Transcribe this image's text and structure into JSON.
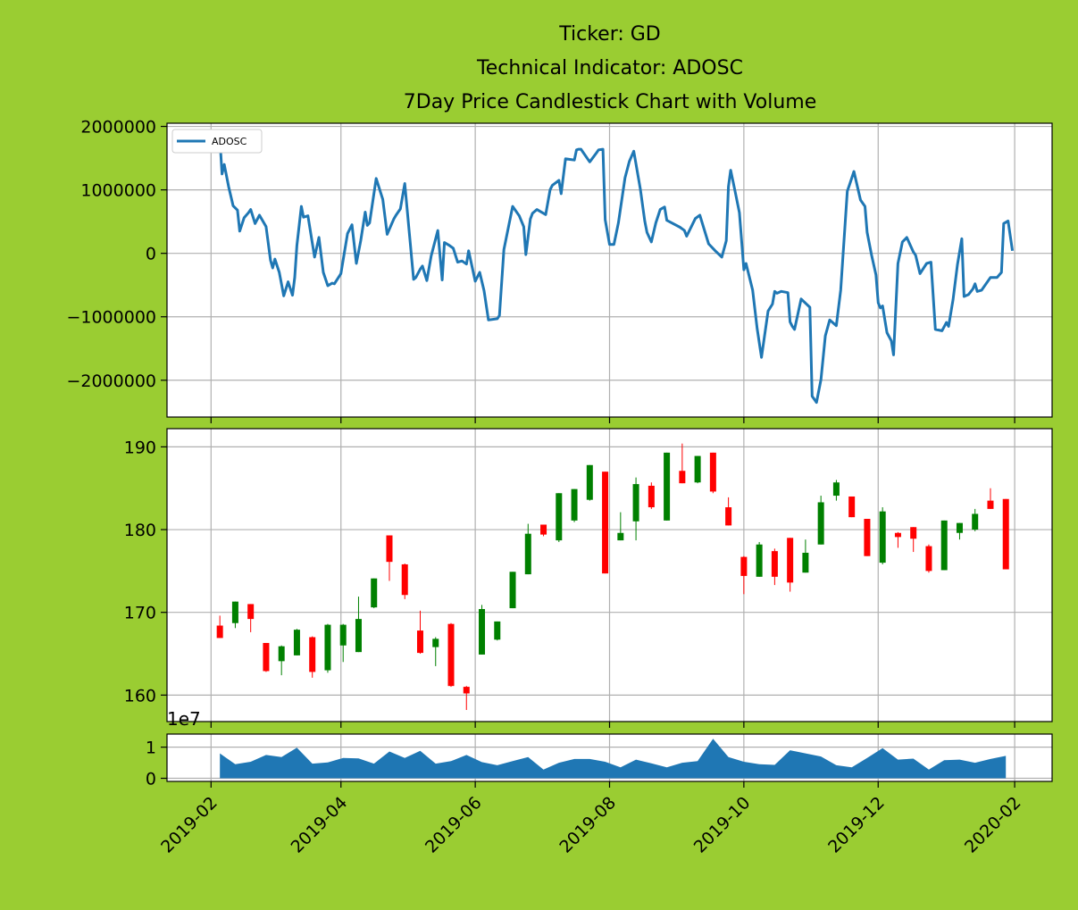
{
  "title_lines": [
    "Ticker: GD",
    "Technical Indicator: ADOSC",
    "7Day Price Candlestick Chart with Volume"
  ],
  "colors": {
    "background": "#9acd32",
    "panel": "#ffffff",
    "line": "#1f77b4",
    "up": "#008000",
    "down": "#ff0000",
    "volume": "#1f77b4",
    "grid": "#b0b0b0"
  },
  "chart_data": [
    {
      "type": "line",
      "panel": "indicator",
      "legend": "ADOSC",
      "legend_position": "upper-left",
      "ylim": [
        -2580000,
        2050000
      ],
      "yticks": [
        2000000,
        1000000,
        0,
        -1000000,
        -2000000
      ],
      "ytick_labels": [
        "2000000",
        "1000000",
        "0",
        "−1000000",
        "−2000000"
      ],
      "grid": true,
      "x_start": "2019-02-01",
      "x_end": "2020-02-01",
      "x": [
        "2019-02-05",
        "2019-02-06",
        "2019-02-07",
        "2019-02-09",
        "2019-02-11",
        "2019-02-13",
        "2019-02-14",
        "2019-02-16",
        "2019-02-18",
        "2019-02-19",
        "2019-02-21",
        "2019-02-23",
        "2019-02-26",
        "2019-02-28",
        "2019-03-01",
        "2019-03-02",
        "2019-03-04",
        "2019-03-06",
        "2019-03-08",
        "2019-03-10",
        "2019-03-11",
        "2019-03-12",
        "2019-03-14",
        "2019-03-15",
        "2019-03-17",
        "2019-03-20",
        "2019-03-22",
        "2019-03-24",
        "2019-03-26",
        "2019-03-28",
        "2019-03-29",
        "2019-04-01",
        "2019-04-04",
        "2019-04-06",
        "2019-04-08",
        "2019-04-10",
        "2019-04-12",
        "2019-04-13",
        "2019-04-14",
        "2019-04-17",
        "2019-04-20",
        "2019-04-22",
        "2019-04-24",
        "2019-04-25",
        "2019-04-26",
        "2019-04-28",
        "2019-04-30",
        "2019-05-04",
        "2019-05-05",
        "2019-05-07",
        "2019-05-08",
        "2019-05-10",
        "2019-05-12",
        "2019-05-15",
        "2019-05-17",
        "2019-05-18",
        "2019-05-20",
        "2019-05-22",
        "2019-05-24",
        "2019-05-26",
        "2019-05-28",
        "2019-05-29",
        "2019-06-01",
        "2019-06-03",
        "2019-06-05",
        "2019-06-07",
        "2019-06-11",
        "2019-06-12",
        "2019-06-14",
        "2019-06-18",
        "2019-06-21",
        "2019-06-23",
        "2019-06-24",
        "2019-06-26",
        "2019-06-27",
        "2019-06-29",
        "2019-07-03",
        "2019-07-05",
        "2019-07-06",
        "2019-07-09",
        "2019-07-10",
        "2019-07-12",
        "2019-07-16",
        "2019-07-17",
        "2019-07-18",
        "2019-07-19",
        "2019-07-23",
        "2019-07-26",
        "2019-07-27",
        "2019-07-29",
        "2019-07-30",
        "2019-08-01",
        "2019-08-03",
        "2019-08-05",
        "2019-08-08",
        "2019-08-10",
        "2019-08-12",
        "2019-08-15",
        "2019-08-17",
        "2019-08-18",
        "2019-08-20",
        "2019-08-22",
        "2019-08-24",
        "2019-08-26",
        "2019-08-27",
        "2019-09-02",
        "2019-09-04",
        "2019-09-05",
        "2019-09-09",
        "2019-09-11",
        "2019-09-15",
        "2019-09-18",
        "2019-09-21",
        "2019-09-23",
        "2019-09-24",
        "2019-09-25",
        "2019-09-27",
        "2019-09-29",
        "2019-10-01",
        "2019-10-02",
        "2019-10-05",
        "2019-10-07",
        "2019-10-09",
        "2019-10-12",
        "2019-10-14",
        "2019-10-15",
        "2019-10-16",
        "2019-10-18",
        "2019-10-21",
        "2019-10-22",
        "2019-10-23",
        "2019-10-24",
        "2019-10-27",
        "2019-10-31",
        "2019-11-01",
        "2019-11-03",
        "2019-11-05",
        "2019-11-07",
        "2019-11-09",
        "2019-11-12",
        "2019-11-14",
        "2019-11-17",
        "2019-11-18",
        "2019-11-20",
        "2019-11-23",
        "2019-11-25",
        "2019-11-26",
        "2019-11-28",
        "2019-11-30",
        "2019-12-01",
        "2019-12-02",
        "2019-12-03",
        "2019-12-05",
        "2019-12-07",
        "2019-12-08",
        "2019-12-10",
        "2019-12-12",
        "2019-12-14",
        "2019-12-17",
        "2019-12-18",
        "2019-12-20",
        "2019-12-23",
        "2019-12-25",
        "2019-12-27",
        "2019-12-30",
        "2020-01-01",
        "2020-01-02",
        "2020-01-04",
        "2020-01-06",
        "2020-01-08",
        "2020-01-09",
        "2020-01-11",
        "2020-01-13",
        "2020-01-14",
        "2020-01-15",
        "2020-01-17",
        "2020-01-21",
        "2020-01-24",
        "2020-01-26",
        "2020-01-27",
        "2020-01-29",
        "2020-01-31"
      ],
      "values": [
        1800000,
        1250000,
        1400000,
        1050000,
        750000,
        680000,
        350000,
        560000,
        640000,
        690000,
        470000,
        600000,
        420000,
        -110000,
        -230000,
        -90000,
        -300000,
        -670000,
        -450000,
        -660000,
        -380000,
        120000,
        740000,
        570000,
        590000,
        -60000,
        250000,
        -300000,
        -510000,
        -470000,
        -480000,
        -320000,
        310000,
        450000,
        -160000,
        200000,
        650000,
        440000,
        480000,
        1180000,
        850000,
        300000,
        460000,
        540000,
        600000,
        700000,
        1100000,
        -410000,
        -380000,
        -250000,
        -200000,
        -430000,
        -40000,
        360000,
        -420000,
        170000,
        130000,
        80000,
        -140000,
        -120000,
        -170000,
        40000,
        -440000,
        -300000,
        -590000,
        -1050000,
        -1030000,
        -980000,
        60000,
        740000,
        590000,
        420000,
        -20000,
        540000,
        630000,
        690000,
        610000,
        1000000,
        1070000,
        1150000,
        940000,
        1490000,
        1470000,
        1630000,
        1640000,
        1640000,
        1440000,
        1580000,
        1630000,
        1640000,
        530000,
        140000,
        140000,
        480000,
        1190000,
        1450000,
        1610000,
        1010000,
        510000,
        330000,
        180000,
        480000,
        690000,
        730000,
        520000,
        410000,
        360000,
        270000,
        550000,
        600000,
        150000,
        40000,
        -60000,
        200000,
        1050000,
        1310000,
        980000,
        640000,
        -260000,
        -160000,
        -580000,
        -1180000,
        -1640000,
        -910000,
        -800000,
        -600000,
        -630000,
        -600000,
        -620000,
        -1080000,
        -1150000,
        -1200000,
        -720000,
        -850000,
        -2250000,
        -2350000,
        -1990000,
        -1300000,
        -1050000,
        -1140000,
        -580000,
        980000,
        1080000,
        1290000,
        840000,
        740000,
        330000,
        -30000,
        -340000,
        -780000,
        -860000,
        -830000,
        -1250000,
        -1380000,
        -1600000,
        -160000,
        180000,
        250000,
        20000,
        -30000,
        -320000,
        -160000,
        -140000,
        -1200000,
        -1220000,
        -1090000,
        -1150000,
        -730000,
        -180000,
        230000,
        -680000,
        -650000,
        -560000,
        -480000,
        -600000,
        -580000,
        -380000,
        -380000,
        -300000,
        470000,
        510000,
        40000
      ]
    },
    {
      "type": "candlestick",
      "panel": "price",
      "ylim": [
        156.8,
        192.2
      ],
      "yticks": [
        160,
        170,
        180,
        190
      ],
      "grid": true,
      "x": [
        "2019-02-05",
        "2019-02-12",
        "2019-02-19",
        "2019-02-26",
        "2019-03-05",
        "2019-03-12",
        "2019-03-19",
        "2019-03-26",
        "2019-04-02",
        "2019-04-09",
        "2019-04-16",
        "2019-04-23",
        "2019-04-30",
        "2019-05-07",
        "2019-05-14",
        "2019-05-21",
        "2019-05-28",
        "2019-06-04",
        "2019-06-11",
        "2019-06-18",
        "2019-06-25",
        "2019-07-02",
        "2019-07-09",
        "2019-07-16",
        "2019-07-23",
        "2019-07-30",
        "2019-08-06",
        "2019-08-13",
        "2019-08-20",
        "2019-08-27",
        "2019-09-03",
        "2019-09-10",
        "2019-09-17",
        "2019-09-24",
        "2019-10-01",
        "2019-10-08",
        "2019-10-15",
        "2019-10-22",
        "2019-10-29",
        "2019-11-05",
        "2019-11-12",
        "2019-11-19",
        "2019-11-26",
        "2019-12-03",
        "2019-12-10",
        "2019-12-17",
        "2019-12-24",
        "2019-12-31",
        "2020-01-07",
        "2020-01-14",
        "2020-01-21",
        "2020-01-28"
      ],
      "open": [
        168.4,
        168.7,
        171.0,
        166.3,
        164.1,
        164.8,
        167.0,
        163.0,
        166.0,
        165.2,
        170.6,
        179.3,
        175.8,
        167.8,
        165.8,
        168.6,
        161.0,
        164.9,
        166.7,
        170.5,
        174.6,
        180.6,
        178.7,
        181.1,
        183.6,
        187.0,
        178.7,
        181.0,
        185.3,
        181.1,
        187.1,
        185.7,
        189.3,
        182.7,
        176.7,
        174.3,
        177.4,
        179.0,
        174.8,
        178.2,
        184.1,
        184.0,
        181.3,
        176.0,
        179.6,
        180.3,
        178.0,
        175.1,
        179.6,
        180.0,
        183.5,
        183.7
      ],
      "close": [
        166.9,
        171.3,
        169.2,
        162.9,
        165.9,
        167.9,
        162.8,
        168.5,
        168.5,
        169.2,
        174.1,
        176.1,
        172.1,
        165.1,
        166.8,
        161.1,
        160.2,
        170.4,
        168.9,
        174.9,
        179.5,
        179.4,
        184.4,
        184.9,
        187.8,
        174.7,
        179.6,
        185.5,
        182.7,
        189.3,
        185.6,
        188.9,
        184.6,
        180.5,
        174.4,
        178.2,
        174.3,
        173.6,
        177.2,
        183.3,
        185.7,
        181.5,
        176.8,
        182.2,
        179.1,
        178.9,
        175.0,
        181.1,
        180.8,
        181.9,
        182.5,
        175.2
      ],
      "high": [
        169.6,
        171.3,
        171.0,
        166.3,
        166.0,
        168.0,
        167.1,
        168.6,
        168.6,
        171.9,
        174.1,
        179.3,
        175.9,
        170.2,
        167.0,
        168.7,
        161.1,
        170.9,
        168.9,
        174.9,
        180.7,
        180.6,
        184.4,
        184.9,
        187.8,
        187.0,
        182.1,
        186.3,
        185.7,
        189.3,
        190.4,
        188.9,
        189.3,
        183.9,
        176.8,
        178.5,
        177.7,
        179.0,
        178.8,
        184.1,
        186.0,
        184.0,
        181.3,
        182.7,
        179.7,
        180.3,
        178.2,
        181.1,
        180.8,
        182.5,
        185.0,
        183.7
      ],
      "low": [
        166.9,
        168.1,
        167.6,
        162.8,
        162.4,
        164.8,
        162.1,
        162.7,
        164.0,
        165.2,
        170.5,
        173.8,
        171.6,
        165.0,
        163.5,
        161.0,
        158.2,
        164.9,
        166.6,
        170.5,
        174.6,
        179.2,
        178.5,
        180.9,
        183.5,
        174.7,
        178.7,
        178.7,
        182.5,
        181.1,
        185.6,
        185.6,
        184.4,
        180.5,
        172.2,
        174.3,
        173.3,
        172.5,
        174.8,
        178.2,
        183.5,
        181.5,
        176.8,
        175.8,
        177.8,
        177.3,
        174.8,
        175.1,
        178.8,
        179.8,
        182.5,
        175.2
      ]
    },
    {
      "type": "area",
      "panel": "volume",
      "offset_label": "1e7",
      "ylim": [
        -0.1,
        1.42
      ],
      "yticks": [
        0,
        1
      ],
      "grid": true,
      "x": [
        "2019-02-05",
        "2019-02-12",
        "2019-02-19",
        "2019-02-26",
        "2019-03-05",
        "2019-03-12",
        "2019-03-19",
        "2019-03-26",
        "2019-04-02",
        "2019-04-09",
        "2019-04-16",
        "2019-04-23",
        "2019-04-30",
        "2019-05-07",
        "2019-05-14",
        "2019-05-21",
        "2019-05-28",
        "2019-06-04",
        "2019-06-11",
        "2019-06-18",
        "2019-06-25",
        "2019-07-02",
        "2019-07-09",
        "2019-07-16",
        "2019-07-23",
        "2019-07-30",
        "2019-08-06",
        "2019-08-13",
        "2019-08-20",
        "2019-08-27",
        "2019-09-03",
        "2019-09-10",
        "2019-09-17",
        "2019-09-24",
        "2019-10-01",
        "2019-10-08",
        "2019-10-15",
        "2019-10-22",
        "2019-10-29",
        "2019-11-05",
        "2019-11-12",
        "2019-11-19",
        "2019-11-26",
        "2019-12-03",
        "2019-12-10",
        "2019-12-17",
        "2019-12-24",
        "2019-12-31",
        "2020-01-07",
        "2020-01-14",
        "2020-01-21",
        "2020-01-28"
      ],
      "values": [
        0.8,
        0.45,
        0.53,
        0.75,
        0.68,
        0.98,
        0.47,
        0.51,
        0.65,
        0.64,
        0.47,
        0.86,
        0.65,
        0.88,
        0.47,
        0.55,
        0.75,
        0.52,
        0.42,
        0.55,
        0.68,
        0.28,
        0.5,
        0.62,
        0.62,
        0.53,
        0.35,
        0.6,
        0.48,
        0.35,
        0.5,
        0.55,
        1.27,
        0.68,
        0.53,
        0.45,
        0.43,
        0.9,
        0.8,
        0.7,
        0.42,
        0.35,
        0.65,
        0.97,
        0.6,
        0.63,
        0.28,
        0.58,
        0.6,
        0.5,
        0.62,
        0.72
      ]
    }
  ],
  "x_axis": {
    "tick_labels": [
      "2019-02",
      "2019-04",
      "2019-06",
      "2019-08",
      "2019-10",
      "2019-12",
      "2020-02"
    ],
    "tick_dates": [
      "2019-02-01",
      "2019-04-01",
      "2019-06-01",
      "2019-08-01",
      "2019-10-01",
      "2019-12-01",
      "2020-02-01"
    ],
    "range": [
      "2019-01-12",
      "2020-02-18"
    ],
    "label_rotation_deg": 45
  }
}
